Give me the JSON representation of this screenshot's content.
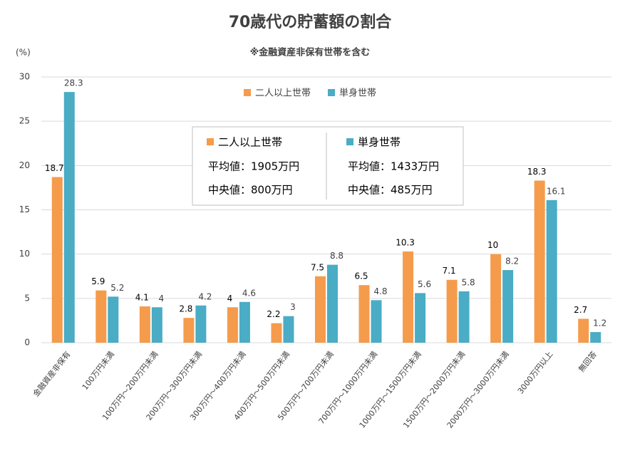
{
  "chart_data": {
    "type": "bar",
    "title": "70歳代の貯蓄額の割合",
    "subtitle": "※金融資産非保有世帯を含む",
    "y_label": "(%)",
    "categories": [
      "金融資産非保有",
      "100万円未満",
      "100万円～200万円未満",
      "200万円～300万円未満",
      "300万円～400万円未満",
      "400万円～500万円未満",
      "500万円～700万円未満",
      "700万円～1000万円未満",
      "1000万円～1500万円未満",
      "1500万円～2000万円未満",
      "2000万円～3000万円未満",
      "3000万円以上",
      "無回答"
    ],
    "series": [
      {
        "name": "二人以上世帯",
        "color": "#f59b4c",
        "values": [
          18.7,
          5.9,
          4.1,
          2.8,
          4,
          2.2,
          7.5,
          6.5,
          10.3,
          7.1,
          10,
          18.3,
          2.7
        ]
      },
      {
        "name": "単身世帯",
        "color": "#4aacc5",
        "values": [
          28.3,
          5.2,
          4,
          4.2,
          4.6,
          3,
          8.8,
          4.8,
          5.6,
          5.8,
          8.2,
          16.1,
          1.2
        ]
      }
    ],
    "ylim": [
      0,
      30
    ],
    "yticks": [
      0,
      5,
      10,
      15,
      20,
      25,
      30
    ],
    "grid": true,
    "info_box": [
      {
        "name": "二人以上世帯",
        "mean": "平均値：1905万円",
        "median": "中央値：800万円"
      },
      {
        "name": "単身世帯",
        "mean": "平均値：1433万円",
        "median": "中央値：485万円"
      }
    ]
  }
}
